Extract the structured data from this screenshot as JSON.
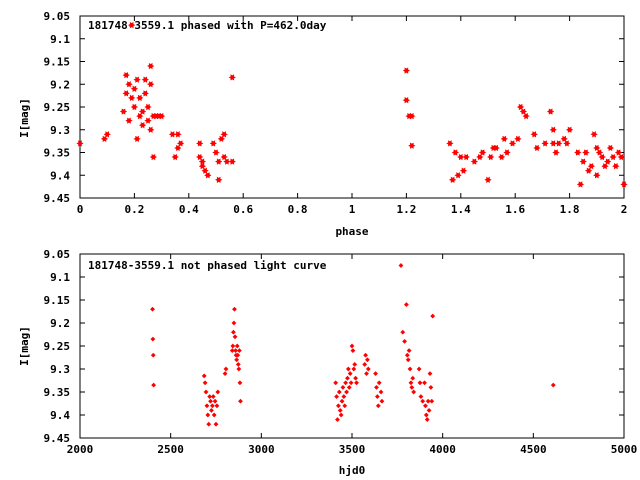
{
  "chart_data": [
    {
      "type": "scatter",
      "title": "181748-3559.1 phased with P=462.0day",
      "xlabel": "phase",
      "ylabel": "I[mag]",
      "xlim": [
        0,
        2
      ],
      "ylim": [
        9.45,
        9.05
      ],
      "y_inverted": true,
      "x_ticks": [
        "0",
        "0.2",
        "0.4",
        "0.6",
        "0.8",
        "1",
        "1.2",
        "1.4",
        "1.6",
        "1.8",
        "2"
      ],
      "y_ticks": [
        "9.05",
        "9.1",
        "9.15",
        "9.2",
        "9.25",
        "9.3",
        "9.35",
        "9.4",
        "9.45"
      ],
      "marker_color": "#ff0000",
      "series": [
        {
          "x": [
            0.0,
            0.09,
            0.1,
            0.16,
            0.17,
            0.17,
            0.18,
            0.18,
            0.19,
            0.19,
            0.2,
            0.2,
            0.21,
            0.21,
            0.22,
            0.22,
            0.23,
            0.23,
            0.24,
            0.24,
            0.25,
            0.25,
            0.26,
            0.26,
            0.26,
            0.27,
            0.27,
            0.28,
            0.29,
            0.3,
            0.34,
            0.35,
            0.36,
            0.36,
            0.37,
            0.44,
            0.44,
            0.45,
            0.45,
            0.46,
            0.47,
            0.49,
            0.5,
            0.51,
            0.51,
            0.52,
            0.53,
            0.53,
            0.54,
            0.56,
            0.56,
            1.2,
            1.2,
            1.21,
            1.22,
            1.22,
            1.36,
            1.37,
            1.38,
            1.39,
            1.4,
            1.41,
            1.42,
            1.45,
            1.47,
            1.48,
            1.5,
            1.51,
            1.52,
            1.53,
            1.55,
            1.56,
            1.57,
            1.59,
            1.61,
            1.62,
            1.63,
            1.64,
            1.67,
            1.68,
            1.71,
            1.73,
            1.74,
            1.74,
            1.75,
            1.76,
            1.78,
            1.79,
            1.8,
            1.83,
            1.84,
            1.85,
            1.86,
            1.87,
            1.88,
            1.89,
            1.9,
            1.9,
            1.91,
            1.92,
            1.93,
            1.94,
            1.95,
            1.96,
            1.97,
            1.98,
            1.99,
            2.0
          ],
          "y": [
            9.33,
            9.32,
            9.31,
            9.26,
            9.18,
            9.22,
            9.2,
            9.28,
            9.07,
            9.23,
            9.21,
            9.25,
            9.19,
            9.32,
            9.27,
            9.23,
            9.26,
            9.29,
            9.19,
            9.22,
            9.28,
            9.25,
            9.2,
            9.16,
            9.3,
            9.36,
            9.27,
            9.27,
            9.27,
            9.27,
            9.31,
            9.36,
            9.34,
            9.31,
            9.33,
            9.33,
            9.36,
            9.38,
            9.37,
            9.39,
            9.4,
            9.33,
            9.35,
            9.41,
            9.37,
            9.32,
            9.36,
            9.31,
            9.37,
            9.185,
            9.37,
            9.17,
            9.235,
            9.27,
            9.335,
            9.27,
            9.33,
            9.41,
            9.35,
            9.4,
            9.36,
            9.39,
            9.36,
            9.37,
            9.36,
            9.35,
            9.41,
            9.36,
            9.34,
            9.34,
            9.36,
            9.32,
            9.35,
            9.33,
            9.32,
            9.25,
            9.26,
            9.27,
            9.31,
            9.34,
            9.33,
            9.26,
            9.3,
            9.33,
            9.35,
            9.33,
            9.32,
            9.33,
            9.3,
            9.35,
            9.42,
            9.37,
            9.35,
            9.39,
            9.38,
            9.31,
            9.34,
            9.4,
            9.35,
            9.36,
            9.38,
            9.37,
            9.34,
            9.36,
            9.38,
            9.35,
            9.36,
            9.42
          ]
        }
      ]
    },
    {
      "type": "scatter",
      "title": "181748-3559.1 not phased light curve",
      "xlabel": "hjd0",
      "ylabel": "I[mag]",
      "xlim": [
        2000,
        5000
      ],
      "ylim": [
        9.45,
        9.05
      ],
      "y_inverted": true,
      "x_ticks": [
        "2000",
        "2500",
        "3000",
        "3500",
        "4000",
        "4500",
        "5000"
      ],
      "y_ticks": [
        "9.05",
        "9.1",
        "9.15",
        "9.2",
        "9.25",
        "9.3",
        "9.35",
        "9.4",
        "9.45"
      ],
      "marker_color": "#ff0000",
      "series": [
        {
          "x": [
            2400,
            2402,
            2404,
            2406,
            2685,
            2690,
            2695,
            2700,
            2705,
            2710,
            2715,
            2720,
            2725,
            2730,
            2735,
            2740,
            2745,
            2750,
            2755,
            2760,
            2800,
            2805,
            2840,
            2843,
            2846,
            2849,
            2852,
            2855,
            2858,
            2861,
            2864,
            2867,
            2870,
            2873,
            2876,
            2879,
            2882,
            2885,
            3410,
            3415,
            3420,
            3425,
            3430,
            3435,
            3440,
            3445,
            3450,
            3455,
            3460,
            3465,
            3470,
            3475,
            3480,
            3485,
            3490,
            3495,
            3500,
            3505,
            3510,
            3515,
            3520,
            3525,
            3570,
            3575,
            3580,
            3585,
            3590,
            3630,
            3635,
            3640,
            3645,
            3650,
            3660,
            3665,
            3770,
            3780,
            3790,
            3800,
            3805,
            3810,
            3815,
            3820,
            3825,
            3830,
            3835,
            3840,
            3870,
            3875,
            3880,
            3890,
            3900,
            3905,
            3910,
            3915,
            3920,
            3925,
            3930,
            3935,
            3940,
            3945,
            4610
          ],
          "y": [
            9.17,
            9.235,
            9.27,
            9.335,
            9.315,
            9.33,
            9.35,
            9.38,
            9.4,
            9.42,
            9.36,
            9.37,
            9.39,
            9.38,
            9.36,
            9.4,
            9.37,
            9.42,
            9.38,
            9.35,
            9.31,
            9.3,
            9.26,
            9.25,
            9.22,
            9.2,
            9.17,
            9.23,
            9.26,
            9.27,
            9.28,
            9.25,
            9.27,
            9.29,
            9.3,
            9.26,
            9.33,
            9.37,
            9.33,
            9.36,
            9.41,
            9.38,
            9.35,
            9.39,
            9.4,
            9.37,
            9.34,
            9.36,
            9.38,
            9.33,
            9.35,
            9.32,
            9.3,
            9.34,
            9.31,
            9.33,
            9.25,
            9.26,
            9.3,
            9.29,
            9.32,
            9.33,
            9.29,
            9.27,
            9.31,
            9.28,
            9.3,
            9.31,
            9.34,
            9.36,
            9.38,
            9.33,
            9.35,
            9.37,
            9.075,
            9.22,
            9.24,
            9.16,
            9.27,
            9.28,
            9.26,
            9.3,
            9.33,
            9.34,
            9.32,
            9.35,
            9.3,
            9.33,
            9.36,
            9.37,
            9.33,
            9.38,
            9.4,
            9.41,
            9.37,
            9.39,
            9.31,
            9.34,
            9.37,
            9.185,
            9.335
          ]
        }
      ]
    }
  ]
}
